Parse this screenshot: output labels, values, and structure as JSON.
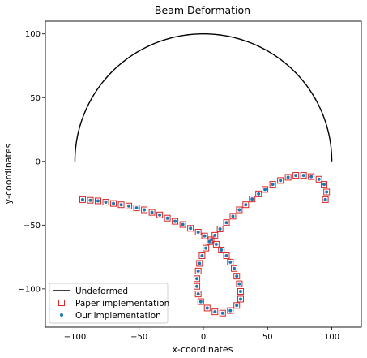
{
  "chart_data": {
    "type": "scatter",
    "title": "Beam Deformation",
    "xlabel": "x-coordinates",
    "ylabel": "y-coordinates",
    "xlim": [
      -123,
      123
    ],
    "ylim": [
      -130,
      110
    ],
    "xticks": [
      -100,
      -50,
      0,
      50,
      100
    ],
    "yticks": [
      -100,
      -50,
      0,
      50,
      100
    ],
    "grid": false,
    "legend_placement": "lower-left",
    "series": [
      {
        "name": "Undeformed",
        "kind": "line",
        "color": "#000000",
        "shape": "semicircle",
        "center": [
          0,
          0
        ],
        "radius": 100,
        "theta_range_deg": [
          0,
          180
        ]
      },
      {
        "name": "Paper implementation",
        "kind": "marker",
        "marker": "square-open",
        "color": "#d62728",
        "points_ref": "deformed"
      },
      {
        "name": "Our implementation",
        "kind": "marker",
        "marker": "dot",
        "color": "#1f77b4",
        "points_ref": "deformed"
      }
    ],
    "deformed": [
      [
        -94,
        -30
      ],
      [
        -88,
        -30.5
      ],
      [
        -82,
        -31
      ],
      [
        -76,
        -32
      ],
      [
        -70,
        -33
      ],
      [
        -64,
        -34
      ],
      [
        -58,
        -35
      ],
      [
        -52,
        -36.5
      ],
      [
        -46,
        -38
      ],
      [
        -40,
        -40
      ],
      [
        -34,
        -42
      ],
      [
        -28,
        -44.5
      ],
      [
        -22,
        -47
      ],
      [
        -16,
        -49.5
      ],
      [
        -10,
        -52.5
      ],
      [
        -4,
        -55.5
      ],
      [
        1,
        -58.5
      ],
      [
        6,
        -61.5
      ],
      [
        10,
        -65
      ],
      [
        14,
        -69.5
      ],
      [
        18,
        -74
      ],
      [
        21,
        -79
      ],
      [
        24,
        -84
      ],
      [
        26,
        -90
      ],
      [
        28,
        -96
      ],
      [
        29,
        -102
      ],
      [
        29,
        -108
      ],
      [
        26,
        -113
      ],
      [
        21,
        -117
      ],
      [
        15,
        -119
      ],
      [
        9,
        -118
      ],
      [
        3,
        -115
      ],
      [
        -2,
        -110
      ],
      [
        -4,
        -104
      ],
      [
        -5,
        -98
      ],
      [
        -5,
        -92
      ],
      [
        -4,
        -86
      ],
      [
        -3,
        -80
      ],
      [
        -1,
        -74
      ],
      [
        2,
        -68
      ],
      [
        5,
        -63
      ],
      [
        9,
        -58
      ],
      [
        13,
        -53
      ],
      [
        18,
        -48
      ],
      [
        23,
        -43
      ],
      [
        28,
        -38
      ],
      [
        33,
        -34
      ],
      [
        38,
        -29.5
      ],
      [
        43,
        -25.5
      ],
      [
        48,
        -22
      ],
      [
        54,
        -18
      ],
      [
        60,
        -15
      ],
      [
        66,
        -12.5
      ],
      [
        72,
        -11
      ],
      [
        78,
        -11
      ],
      [
        84,
        -12
      ],
      [
        90,
        -14
      ],
      [
        94,
        -18
      ],
      [
        96,
        -24
      ],
      [
        95,
        -30
      ]
    ]
  }
}
